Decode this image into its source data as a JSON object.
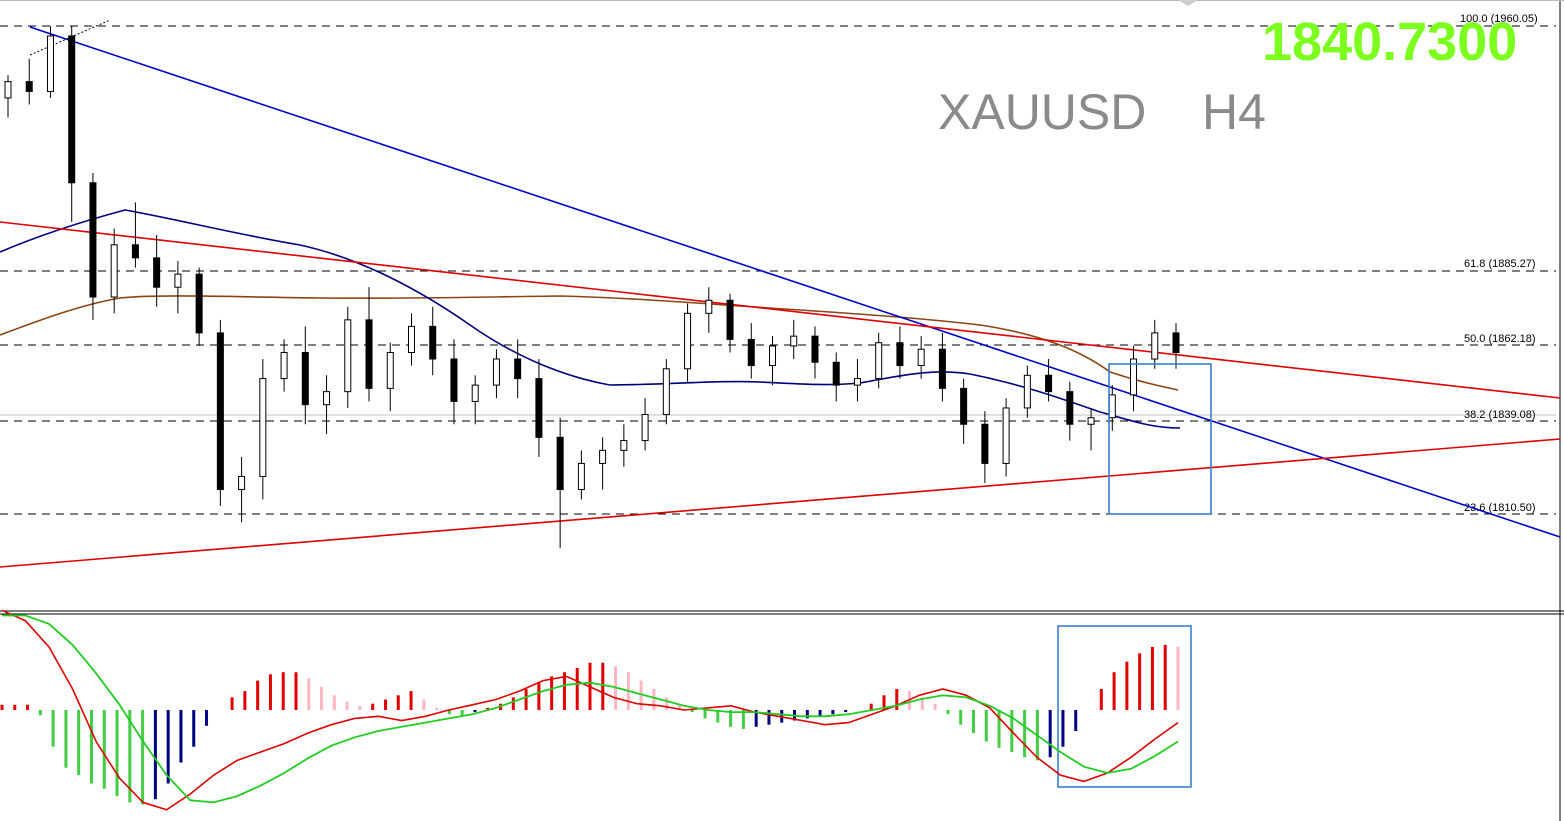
{
  "header": {
    "symbol": "XAUUSD",
    "timeframe": "H4",
    "last_price": "1840.7300"
  },
  "colors": {
    "price_display": "#7cff1f",
    "symbol_text": "#8a8a8a",
    "trendline_blue": "#0000cc",
    "trendline_red": "#e00000",
    "ma_fast": "#000080",
    "ma_slow": "#8b4513",
    "highlight_box": "#3a7fd0",
    "macd_line": "#e00000",
    "signal_line": "#22cc22",
    "hist_up_strong": "#e00000",
    "hist_up_weak": "#ffb6c1",
    "hist_down_strong": "#000080",
    "hist_down_weak": "#44cc44"
  },
  "chart_data": [
    {
      "type": "candlestick",
      "symbol": "XAUUSD",
      "timeframe": "H4",
      "last_price": 1840.73,
      "ylim": [
        1780,
        1965
      ],
      "fib_levels": [
        {
          "label": "100.0 (1960.05)",
          "value": 1960.05
        },
        {
          "label": "61.8 (1885.27)",
          "value": 1885.27
        },
        {
          "label": "50.0 (1862.18)",
          "value": 1862.18
        },
        {
          "label": "38.2 (1839.08)",
          "value": 1839.08
        },
        {
          "label": "23.6 (1810.50)",
          "value": 1810.5
        }
      ],
      "ohlc": [
        [
          1938,
          1945,
          1932,
          1943
        ],
        [
          1943,
          1950,
          1936,
          1940
        ],
        [
          1940,
          1960,
          1938,
          1957
        ],
        [
          1957,
          1960,
          1900,
          1912
        ],
        [
          1912,
          1915,
          1870,
          1877
        ],
        [
          1877,
          1898,
          1872,
          1893
        ],
        [
          1893,
          1906,
          1886,
          1889
        ],
        [
          1889,
          1896,
          1874,
          1880
        ],
        [
          1880,
          1888,
          1872,
          1884
        ],
        [
          1884,
          1886,
          1862,
          1866
        ],
        [
          1866,
          1870,
          1813,
          1818
        ],
        [
          1818,
          1828,
          1808,
          1822
        ],
        [
          1822,
          1858,
          1815,
          1852
        ],
        [
          1852,
          1864,
          1848,
          1860
        ],
        [
          1860,
          1868,
          1838,
          1844
        ],
        [
          1844,
          1853,
          1835,
          1848
        ],
        [
          1848,
          1874,
          1843,
          1870
        ],
        [
          1870,
          1880,
          1845,
          1849
        ],
        [
          1849,
          1863,
          1842,
          1860
        ],
        [
          1860,
          1872,
          1856,
          1868
        ],
        [
          1868,
          1874,
          1853,
          1858
        ],
        [
          1858,
          1864,
          1838,
          1845
        ],
        [
          1845,
          1853,
          1838,
          1850
        ],
        [
          1850,
          1861,
          1846,
          1858
        ],
        [
          1858,
          1864,
          1846,
          1852
        ],
        [
          1852,
          1858,
          1828,
          1834
        ],
        [
          1834,
          1840,
          1800,
          1818
        ],
        [
          1818,
          1830,
          1815,
          1826
        ],
        [
          1826,
          1834,
          1818,
          1830
        ],
        [
          1830,
          1838,
          1825,
          1833
        ],
        [
          1833,
          1846,
          1830,
          1841
        ],
        [
          1841,
          1858,
          1838,
          1855
        ],
        [
          1855,
          1875,
          1851,
          1872
        ],
        [
          1872,
          1880,
          1866,
          1876
        ],
        [
          1876,
          1878,
          1860,
          1864
        ],
        [
          1864,
          1869,
          1852,
          1856
        ],
        [
          1856,
          1865,
          1850,
          1862
        ],
        [
          1862,
          1870,
          1858,
          1865
        ],
        [
          1865,
          1868,
          1852,
          1857
        ],
        [
          1857,
          1860,
          1845,
          1850
        ],
        [
          1850,
          1858,
          1845,
          1852
        ],
        [
          1852,
          1866,
          1849,
          1863
        ],
        [
          1863,
          1868,
          1852,
          1856
        ],
        [
          1856,
          1865,
          1852,
          1861
        ],
        [
          1861,
          1866,
          1845,
          1849
        ],
        [
          1849,
          1852,
          1832,
          1838
        ],
        [
          1838,
          1842,
          1820,
          1826
        ],
        [
          1826,
          1846,
          1822,
          1843
        ],
        [
          1843,
          1856,
          1840,
          1853
        ],
        [
          1853,
          1858,
          1845,
          1848
        ],
        [
          1848,
          1851,
          1833,
          1838
        ],
        [
          1838,
          1843,
          1830,
          1840
        ],
        [
          1840,
          1850,
          1836,
          1847
        ],
        [
          1847,
          1862,
          1842,
          1858
        ],
        [
          1858,
          1870,
          1855,
          1866
        ],
        [
          1866,
          1869,
          1855,
          1860
        ]
      ],
      "ma_fast_label": "MA (navy)",
      "ma_slow_label": "MA (brown)"
    },
    {
      "type": "macd",
      "ylim": [
        -1,
        1
      ],
      "histogram": [
        0.05,
        0.05,
        0.05,
        -0.05,
        -0.35,
        -0.55,
        -0.62,
        -0.7,
        -0.75,
        -0.82,
        -0.88,
        -0.9,
        -0.85,
        -0.7,
        -0.5,
        -0.35,
        -0.15,
        0.0,
        0.12,
        0.18,
        0.28,
        0.34,
        0.36,
        0.36,
        0.3,
        0.22,
        0.14,
        0.08,
        0.04,
        0.06,
        0.1,
        0.14,
        0.18,
        0.1,
        0.02,
        -0.04,
        -0.06,
        -0.02,
        0.02,
        0.06,
        0.12,
        0.2,
        0.26,
        0.32,
        0.36,
        0.4,
        0.45,
        0.45,
        0.42,
        0.36,
        0.28,
        0.2,
        0.12,
        0.06,
        -0.02,
        -0.08,
        -0.12,
        -0.16,
        -0.18,
        -0.16,
        -0.14,
        -0.12,
        -0.1,
        -0.08,
        -0.06,
        -0.04,
        -0.02,
        0.0,
        0.06,
        0.14,
        0.2,
        0.18,
        0.12,
        0.06,
        -0.04,
        -0.14,
        -0.22,
        -0.3,
        -0.36,
        -0.4,
        -0.45,
        -0.48,
        -0.45,
        -0.35,
        -0.2,
        0.0,
        0.2,
        0.36,
        0.46,
        0.54,
        0.6,
        0.62,
        0.6
      ],
      "macd": [
        0.95,
        0.85,
        0.6,
        0.2,
        -0.3,
        -0.65,
        -0.88,
        -0.95,
        -0.8,
        -0.62,
        -0.48,
        -0.4,
        -0.32,
        -0.22,
        -0.14,
        -0.08,
        -0.06,
        -0.1,
        -0.06,
        0.0,
        0.05,
        0.1,
        0.18,
        0.28,
        0.32,
        0.22,
        0.12,
        0.06,
        0.04,
        0.0,
        0.02,
        0.04,
        -0.02,
        -0.06,
        -0.1,
        -0.14,
        -0.12,
        -0.04,
        0.04,
        0.14,
        0.2,
        0.14,
        0.02,
        -0.22,
        -0.45,
        -0.62,
        -0.68,
        -0.6,
        -0.45,
        -0.28,
        -0.12
      ],
      "signal": [
        0.9,
        0.9,
        0.82,
        0.62,
        0.35,
        0.05,
        -0.3,
        -0.62,
        -0.86,
        -0.88,
        -0.82,
        -0.72,
        -0.6,
        -0.46,
        -0.34,
        -0.26,
        -0.2,
        -0.16,
        -0.12,
        -0.08,
        -0.04,
        0.02,
        0.1,
        0.18,
        0.24,
        0.26,
        0.22,
        0.16,
        0.1,
        0.04,
        0.0,
        -0.02,
        -0.02,
        -0.04,
        -0.06,
        -0.06,
        -0.04,
        0.0,
        0.04,
        0.1,
        0.14,
        0.12,
        0.04,
        -0.08,
        -0.24,
        -0.4,
        -0.54,
        -0.6,
        -0.56,
        -0.44,
        -0.3
      ]
    }
  ]
}
